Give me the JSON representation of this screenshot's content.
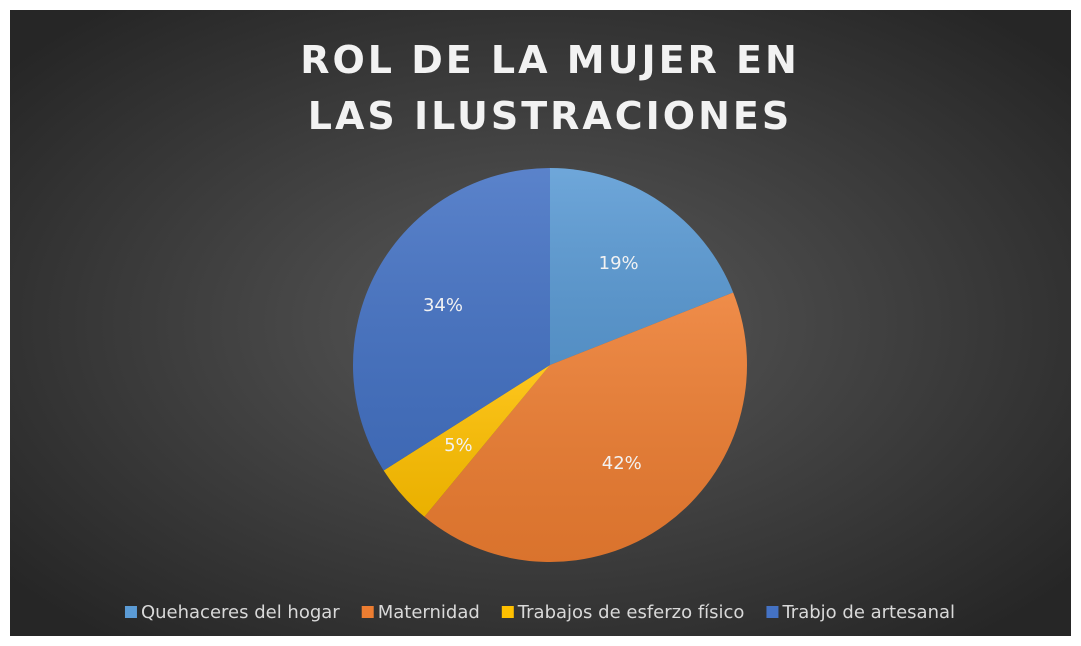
{
  "chart_data": {
    "type": "pie",
    "title": "ROL DE LA MUJER EN LAS ILUSTRACIONES",
    "categories": [
      "Quehaceres del hogar",
      "Maternidad",
      "Trabajos de esferzo físico",
      "Trabjo de artesanal"
    ],
    "values": [
      19,
      42,
      5,
      34
    ],
    "value_labels": [
      "19%",
      "42%",
      "5%",
      "34%"
    ],
    "colors": [
      "#5b9bd5",
      "#ed7d31",
      "#ffc000",
      "#4472c4"
    ],
    "legend": "bottom"
  }
}
